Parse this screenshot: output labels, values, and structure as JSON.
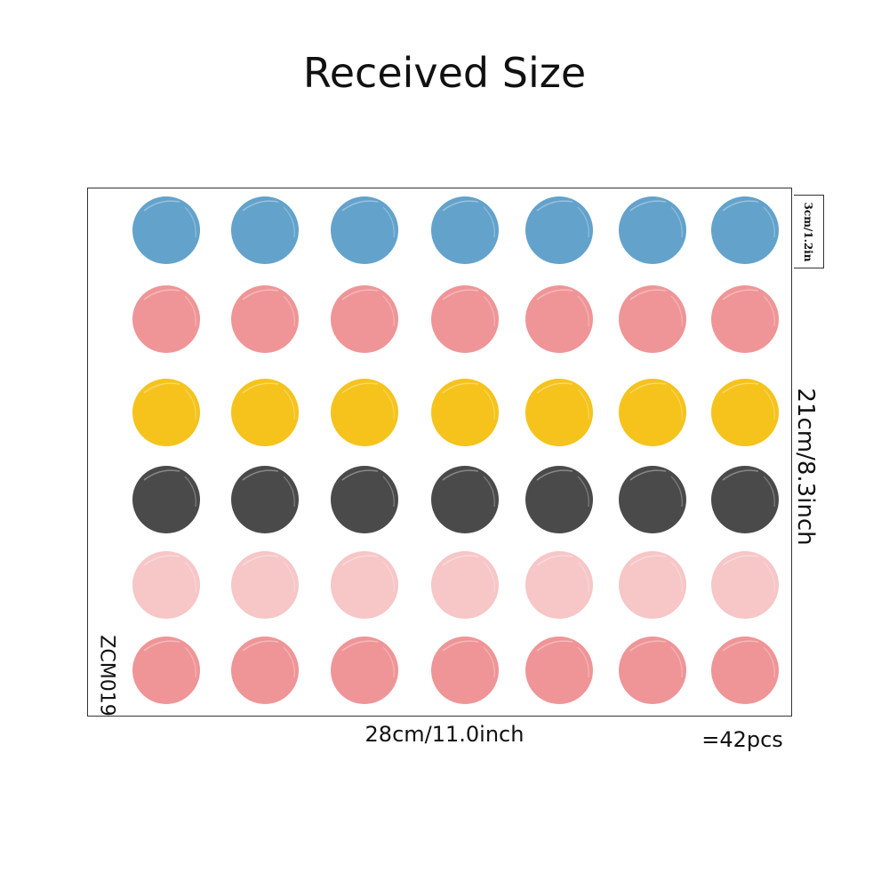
{
  "title": "Received Size",
  "product_code": "ZCM019",
  "dimensions": {
    "width": "28cm/11.0inch",
    "height": "21cm/8.3inch",
    "dot_size": "3cm/1.2in"
  },
  "quantity": "=42pcs",
  "dots": {
    "columns": 7,
    "rows": [
      {
        "name": "blue",
        "color": "#63A2CB"
      },
      {
        "name": "coral",
        "color": "#EF9597"
      },
      {
        "name": "yellow",
        "color": "#F5C31C"
      },
      {
        "name": "charcoal",
        "color": "#4A4A4A"
      },
      {
        "name": "light-pink",
        "color": "#F7C6C7"
      },
      {
        "name": "coral",
        "color": "#EF9597"
      }
    ]
  }
}
